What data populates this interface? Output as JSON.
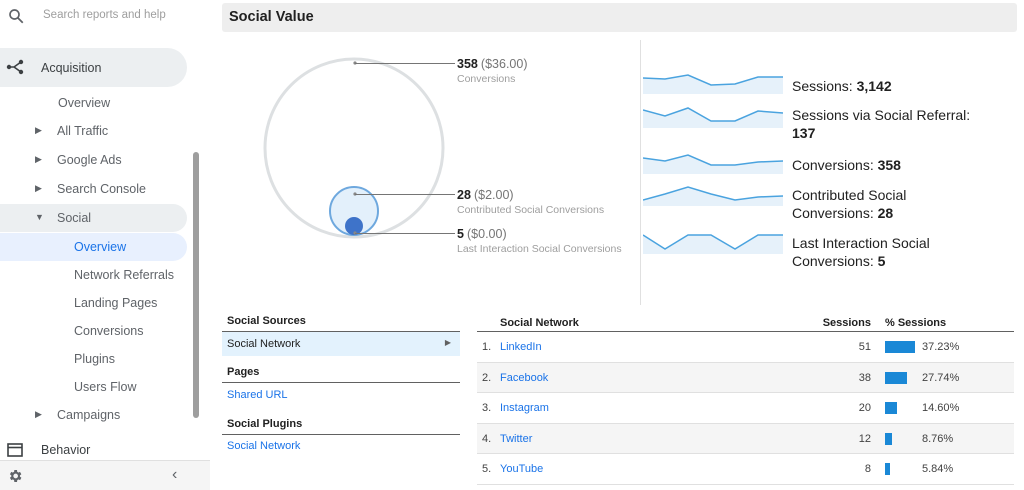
{
  "sidebar": {
    "search_placeholder": "Search reports and help",
    "acquisition_label": "Acquisition",
    "items": [
      {
        "label": "Overview"
      },
      {
        "label": "All Traffic"
      },
      {
        "label": "Google Ads"
      },
      {
        "label": "Search Console"
      },
      {
        "label": "Social"
      },
      {
        "label": "Overview"
      },
      {
        "label": "Network Referrals"
      },
      {
        "label": "Landing Pages"
      },
      {
        "label": "Conversions"
      },
      {
        "label": "Plugins"
      },
      {
        "label": "Users Flow"
      },
      {
        "label": "Campaigns"
      }
    ],
    "behavior_label": "Behavior"
  },
  "main": {
    "title": "Social Value",
    "circles": {
      "conversions": {
        "value": "358",
        "money": "($36.00)",
        "label": "Conversions"
      },
      "contributed": {
        "value": "28",
        "money": "($2.00)",
        "label": "Contributed Social Conversions"
      },
      "last_interaction": {
        "value": "5",
        "money": "($0.00)",
        "label": "Last Interaction Social Conversions"
      }
    },
    "metrics": [
      {
        "label": "Sessions:",
        "value": "3,142"
      },
      {
        "label": "Sessions via Social Referral:",
        "value": "137"
      },
      {
        "label": "Conversions:",
        "value": "358"
      },
      {
        "label": "Contributed Social Conversions:",
        "value": "28"
      },
      {
        "label": "Last Interaction Social Conversions:",
        "value": "5"
      }
    ],
    "sources": {
      "social_sources_header": "Social Sources",
      "social_network_item": "Social Network",
      "pages_header": "Pages",
      "shared_url_item": "Shared URL",
      "social_plugins_header": "Social Plugins",
      "plugins_network_item": "Social Network"
    },
    "network_table": {
      "col_network": "Social Network",
      "col_sessions": "Sessions",
      "col_pct": "% Sessions",
      "rows": [
        {
          "n": "1.",
          "name": "LinkedIn",
          "sessions": "51",
          "pct": "37.23%",
          "frac": 0.3723
        },
        {
          "n": "2.",
          "name": "Facebook",
          "sessions": "38",
          "pct": "27.74%",
          "frac": 0.2774
        },
        {
          "n": "3.",
          "name": "Instagram",
          "sessions": "20",
          "pct": "14.60%",
          "frac": 0.146
        },
        {
          "n": "4.",
          "name": "Twitter",
          "sessions": "12",
          "pct": "8.76%",
          "frac": 0.0876
        },
        {
          "n": "5.",
          "name": "YouTube",
          "sessions": "8",
          "pct": "5.84%",
          "frac": 0.0584
        }
      ]
    }
  },
  "colors": {
    "accent": "#1a73e8",
    "bar": "#1a88d6",
    "spark": "#4aa3df"
  }
}
